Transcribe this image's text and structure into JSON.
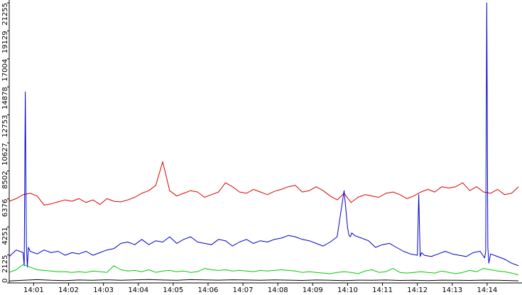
{
  "chart_data": {
    "type": "line",
    "title": "",
    "xlabel": "",
    "ylabel": "",
    "ylim": [
      0,
      21255
    ],
    "xlim": [
      840.3,
      855.0
    ],
    "y_ticks": [
      {
        "value": 0,
        "label": "0"
      },
      {
        "value": 2125,
        "label": "2125"
      },
      {
        "value": 4251,
        "label": "4251"
      },
      {
        "value": 6376,
        "label": "6376"
      },
      {
        "value": 8502,
        "label": "8502"
      },
      {
        "value": 10627,
        "label": "10627"
      },
      {
        "value": 12753,
        "label": "12753"
      },
      {
        "value": 14878,
        "label": "14878"
      },
      {
        "value": 17004,
        "label": "17004"
      },
      {
        "value": 19129,
        "label": "19129"
      },
      {
        "value": 21255,
        "label": "21255"
      }
    ],
    "x_ticks": [
      {
        "value": 841,
        "label": "14:01"
      },
      {
        "value": 842,
        "label": "14:02"
      },
      {
        "value": 843,
        "label": "14:03"
      },
      {
        "value": 844,
        "label": "14:04"
      },
      {
        "value": 845,
        "label": "14:05"
      },
      {
        "value": 846,
        "label": "14:06"
      },
      {
        "value": 847,
        "label": "14:07"
      },
      {
        "value": 848,
        "label": "14:08"
      },
      {
        "value": 849,
        "label": "14:09"
      },
      {
        "value": 850,
        "label": "14:10"
      },
      {
        "value": 851,
        "label": "14:11"
      },
      {
        "value": 852,
        "label": "14:12"
      },
      {
        "value": 853,
        "label": "14:13"
      },
      {
        "value": 854,
        "label": "14:14"
      }
    ],
    "grid": false,
    "legend": "none",
    "series": [
      {
        "color": "#dd0000",
        "x": [
          840.3,
          840.5,
          840.7,
          840.9,
          841.1,
          841.3,
          841.5,
          841.7,
          841.9,
          842.1,
          842.3,
          842.5,
          842.7,
          842.9,
          843.1,
          843.3,
          843.5,
          843.7,
          843.9,
          844.1,
          844.3,
          844.5,
          844.7,
          844.9,
          845.1,
          845.3,
          845.5,
          845.7,
          845.9,
          846.1,
          846.3,
          846.5,
          846.7,
          846.9,
          847.1,
          847.3,
          847.5,
          847.7,
          847.9,
          848.1,
          848.3,
          848.5,
          848.7,
          848.9,
          849.1,
          849.3,
          849.5,
          849.7,
          849.9,
          850.1,
          850.3,
          850.5,
          850.7,
          850.9,
          851.1,
          851.3,
          851.5,
          851.7,
          851.9,
          852.1,
          852.3,
          852.5,
          852.7,
          852.9,
          853.1,
          853.3,
          853.5,
          853.7,
          853.9,
          854.1,
          854.3,
          854.5,
          854.7,
          854.9
        ],
        "y": [
          6200,
          6400,
          6700,
          6800,
          6600,
          5900,
          6000,
          6150,
          6300,
          6200,
          6400,
          6100,
          6300,
          5950,
          6400,
          6200,
          6150,
          6300,
          6500,
          6800,
          7000,
          7400,
          9200,
          7000,
          6600,
          6800,
          7000,
          6900,
          6500,
          6700,
          6900,
          7600,
          7300,
          6900,
          6800,
          7100,
          6900,
          6700,
          6950,
          7100,
          7300,
          7400,
          6900,
          7000,
          7300,
          7000,
          6600,
          6300,
          6800,
          6100,
          6500,
          6700,
          6600,
          6500,
          6800,
          6900,
          6700,
          6400,
          6600,
          6900,
          7100,
          6900,
          7300,
          7200,
          7300,
          7600,
          7000,
          7300,
          6900,
          6800,
          7100,
          6700,
          6800,
          7300
        ]
      },
      {
        "color": "#0000cc",
        "x": [
          840.3,
          840.5,
          840.7,
          840.73,
          840.76,
          840.79,
          840.82,
          840.85,
          840.9,
          841.1,
          841.3,
          841.5,
          841.7,
          841.9,
          842.1,
          842.3,
          842.5,
          842.7,
          842.9,
          843.1,
          843.3,
          843.5,
          843.7,
          843.9,
          844.1,
          844.3,
          844.5,
          844.7,
          844.9,
          845.1,
          845.3,
          845.5,
          845.7,
          845.9,
          846.1,
          846.3,
          846.5,
          846.7,
          846.9,
          847.1,
          847.3,
          847.5,
          847.7,
          847.9,
          848.1,
          848.3,
          848.5,
          848.7,
          848.9,
          849.1,
          849.3,
          849.5,
          849.7,
          849.9,
          850.0,
          850.04,
          850.08,
          850.12,
          850.2,
          850.4,
          850.6,
          850.8,
          851.0,
          851.2,
          851.4,
          851.6,
          851.8,
          852.0,
          852.04,
          852.08,
          852.12,
          852.2,
          852.4,
          852.6,
          852.8,
          853.0,
          853.2,
          853.4,
          853.6,
          853.8,
          853.9,
          853.93,
          853.96,
          853.99,
          854.02,
          854.05,
          854.1,
          854.3,
          854.5,
          854.7,
          854.9
        ],
        "y": [
          2000,
          2500,
          2300,
          1300,
          14500,
          3000,
          1200,
          2700,
          2400,
          2200,
          2500,
          2300,
          2400,
          2100,
          2300,
          2200,
          2400,
          2100,
          2300,
          2500,
          2600,
          3000,
          3100,
          2900,
          3300,
          2900,
          3200,
          3100,
          3500,
          3000,
          3300,
          3500,
          3100,
          3000,
          2900,
          3300,
          3200,
          2800,
          3100,
          3300,
          3000,
          3200,
          3100,
          3300,
          3400,
          3600,
          3500,
          3300,
          3200,
          3000,
          2800,
          3100,
          3500,
          7000,
          4200,
          3600,
          3500,
          3800,
          3600,
          3400,
          3200,
          2700,
          2900,
          3000,
          2700,
          2400,
          2200,
          2100,
          6700,
          2000,
          2300,
          2100,
          2000,
          2200,
          2400,
          2200,
          2100,
          2000,
          2300,
          2400,
          2000,
          1900,
          2400,
          21255,
          2700,
          1500,
          2200,
          2000,
          1800,
          1500,
          1300
        ]
      },
      {
        "color": "#00cc00",
        "x": [
          840.3,
          840.5,
          840.7,
          840.9,
          841.1,
          841.3,
          841.5,
          841.7,
          841.9,
          842.1,
          842.3,
          842.5,
          842.7,
          842.9,
          843.1,
          843.3,
          843.5,
          843.7,
          843.9,
          844.1,
          844.3,
          844.5,
          844.7,
          844.9,
          845.1,
          845.3,
          845.5,
          845.7,
          845.9,
          846.1,
          846.3,
          846.5,
          846.7,
          846.9,
          847.1,
          847.3,
          847.5,
          847.7,
          847.9,
          848.1,
          848.3,
          848.5,
          848.7,
          848.9,
          849.1,
          849.3,
          849.5,
          849.7,
          849.9,
          850.1,
          850.3,
          850.5,
          850.7,
          850.9,
          851.1,
          851.3,
          851.5,
          851.7,
          851.9,
          852.1,
          852.3,
          852.5,
          852.7,
          852.9,
          853.1,
          853.3,
          853.5,
          853.7,
          853.9,
          854.1,
          854.3,
          854.5,
          854.7,
          854.9
        ],
        "y": [
          800,
          1000,
          1400,
          1200,
          1000,
          950,
          900,
          850,
          850,
          800,
          850,
          800,
          900,
          850,
          800,
          1300,
          1000,
          900,
          950,
          850,
          1000,
          800,
          900,
          950,
          850,
          900,
          800,
          850,
          1100,
          1000,
          950,
          1000,
          900,
          950,
          900,
          850,
          950,
          900,
          950,
          1000,
          950,
          900,
          800,
          850,
          800,
          750,
          700,
          800,
          850,
          800,
          700,
          900,
          1000,
          800,
          850,
          1100,
          800,
          750,
          800,
          850,
          800,
          750,
          900,
          800,
          700,
          800,
          950,
          850,
          1100,
          1000,
          900,
          850,
          750,
          600
        ]
      },
      {
        "color": "#000000",
        "x": [
          840.3,
          840.7,
          841.1,
          841.5,
          841.9,
          842.3,
          842.7,
          843.1,
          843.5,
          843.9,
          844.3,
          844.7,
          845.1,
          845.5,
          845.9,
          846.3,
          846.7,
          847.1,
          847.5,
          847.9,
          848.3,
          848.7,
          849.1,
          849.5,
          849.9,
          850.3,
          850.7,
          851.1,
          851.5,
          851.9,
          852.3,
          852.7,
          853.1,
          853.5,
          853.9,
          854.3,
          854.7,
          854.9
        ],
        "y": [
          150,
          200,
          250,
          200,
          180,
          220,
          200,
          240,
          200,
          230,
          260,
          220,
          200,
          250,
          230,
          210,
          240,
          220,
          200,
          230,
          210,
          190,
          220,
          200,
          180,
          210,
          200,
          220,
          190,
          200,
          180,
          210,
          200,
          190,
          210,
          200,
          180,
          160
        ]
      }
    ]
  }
}
